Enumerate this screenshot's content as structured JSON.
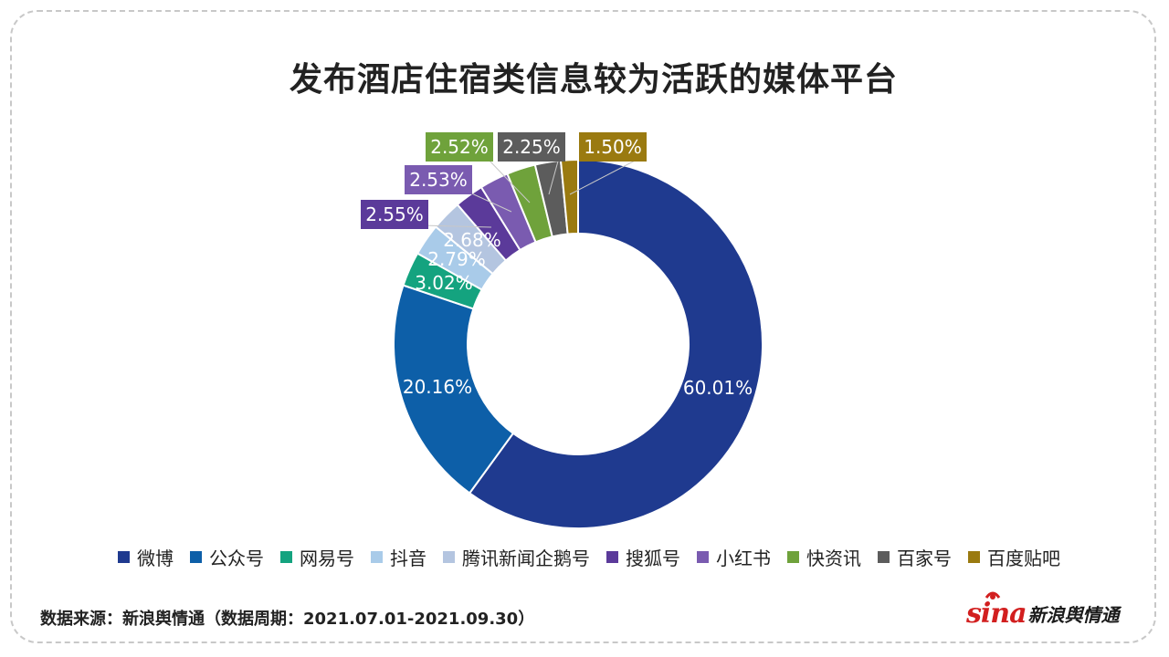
{
  "chart_data": {
    "type": "donut",
    "title": "发布酒店住宿类信息较为活跃的媒体平台",
    "categories": [
      "微博",
      "公众号",
      "网易号",
      "抖音",
      "腾讯新闻企鹅号",
      "搜狐号",
      "小红书",
      "快资讯",
      "百家号",
      "百度贴吧"
    ],
    "values": [
      60.01,
      20.16,
      3.02,
      2.79,
      2.68,
      2.55,
      2.53,
      2.52,
      2.25,
      1.5
    ],
    "labels": [
      "60.01%",
      "20.16%",
      "3.02%",
      "2.79%",
      "2.68%",
      "2.55%",
      "2.53%",
      "2.52%",
      "2.25%",
      "1.50%"
    ],
    "colors": [
      "#1f3a8f",
      "#0d5fa8",
      "#14a37f",
      "#a9cbe9",
      "#b4c5e0",
      "#5b3a9a",
      "#7a5bb0",
      "#6fa23b",
      "#5c5c5c",
      "#9a7a10"
    ],
    "legend_position": "bottom"
  },
  "footer": {
    "source": "数据来源：新浪舆情通（数据周期：2021.07.01-2021.09.30）",
    "brand_logo": "sina",
    "brand_text": "新浪舆情通"
  }
}
